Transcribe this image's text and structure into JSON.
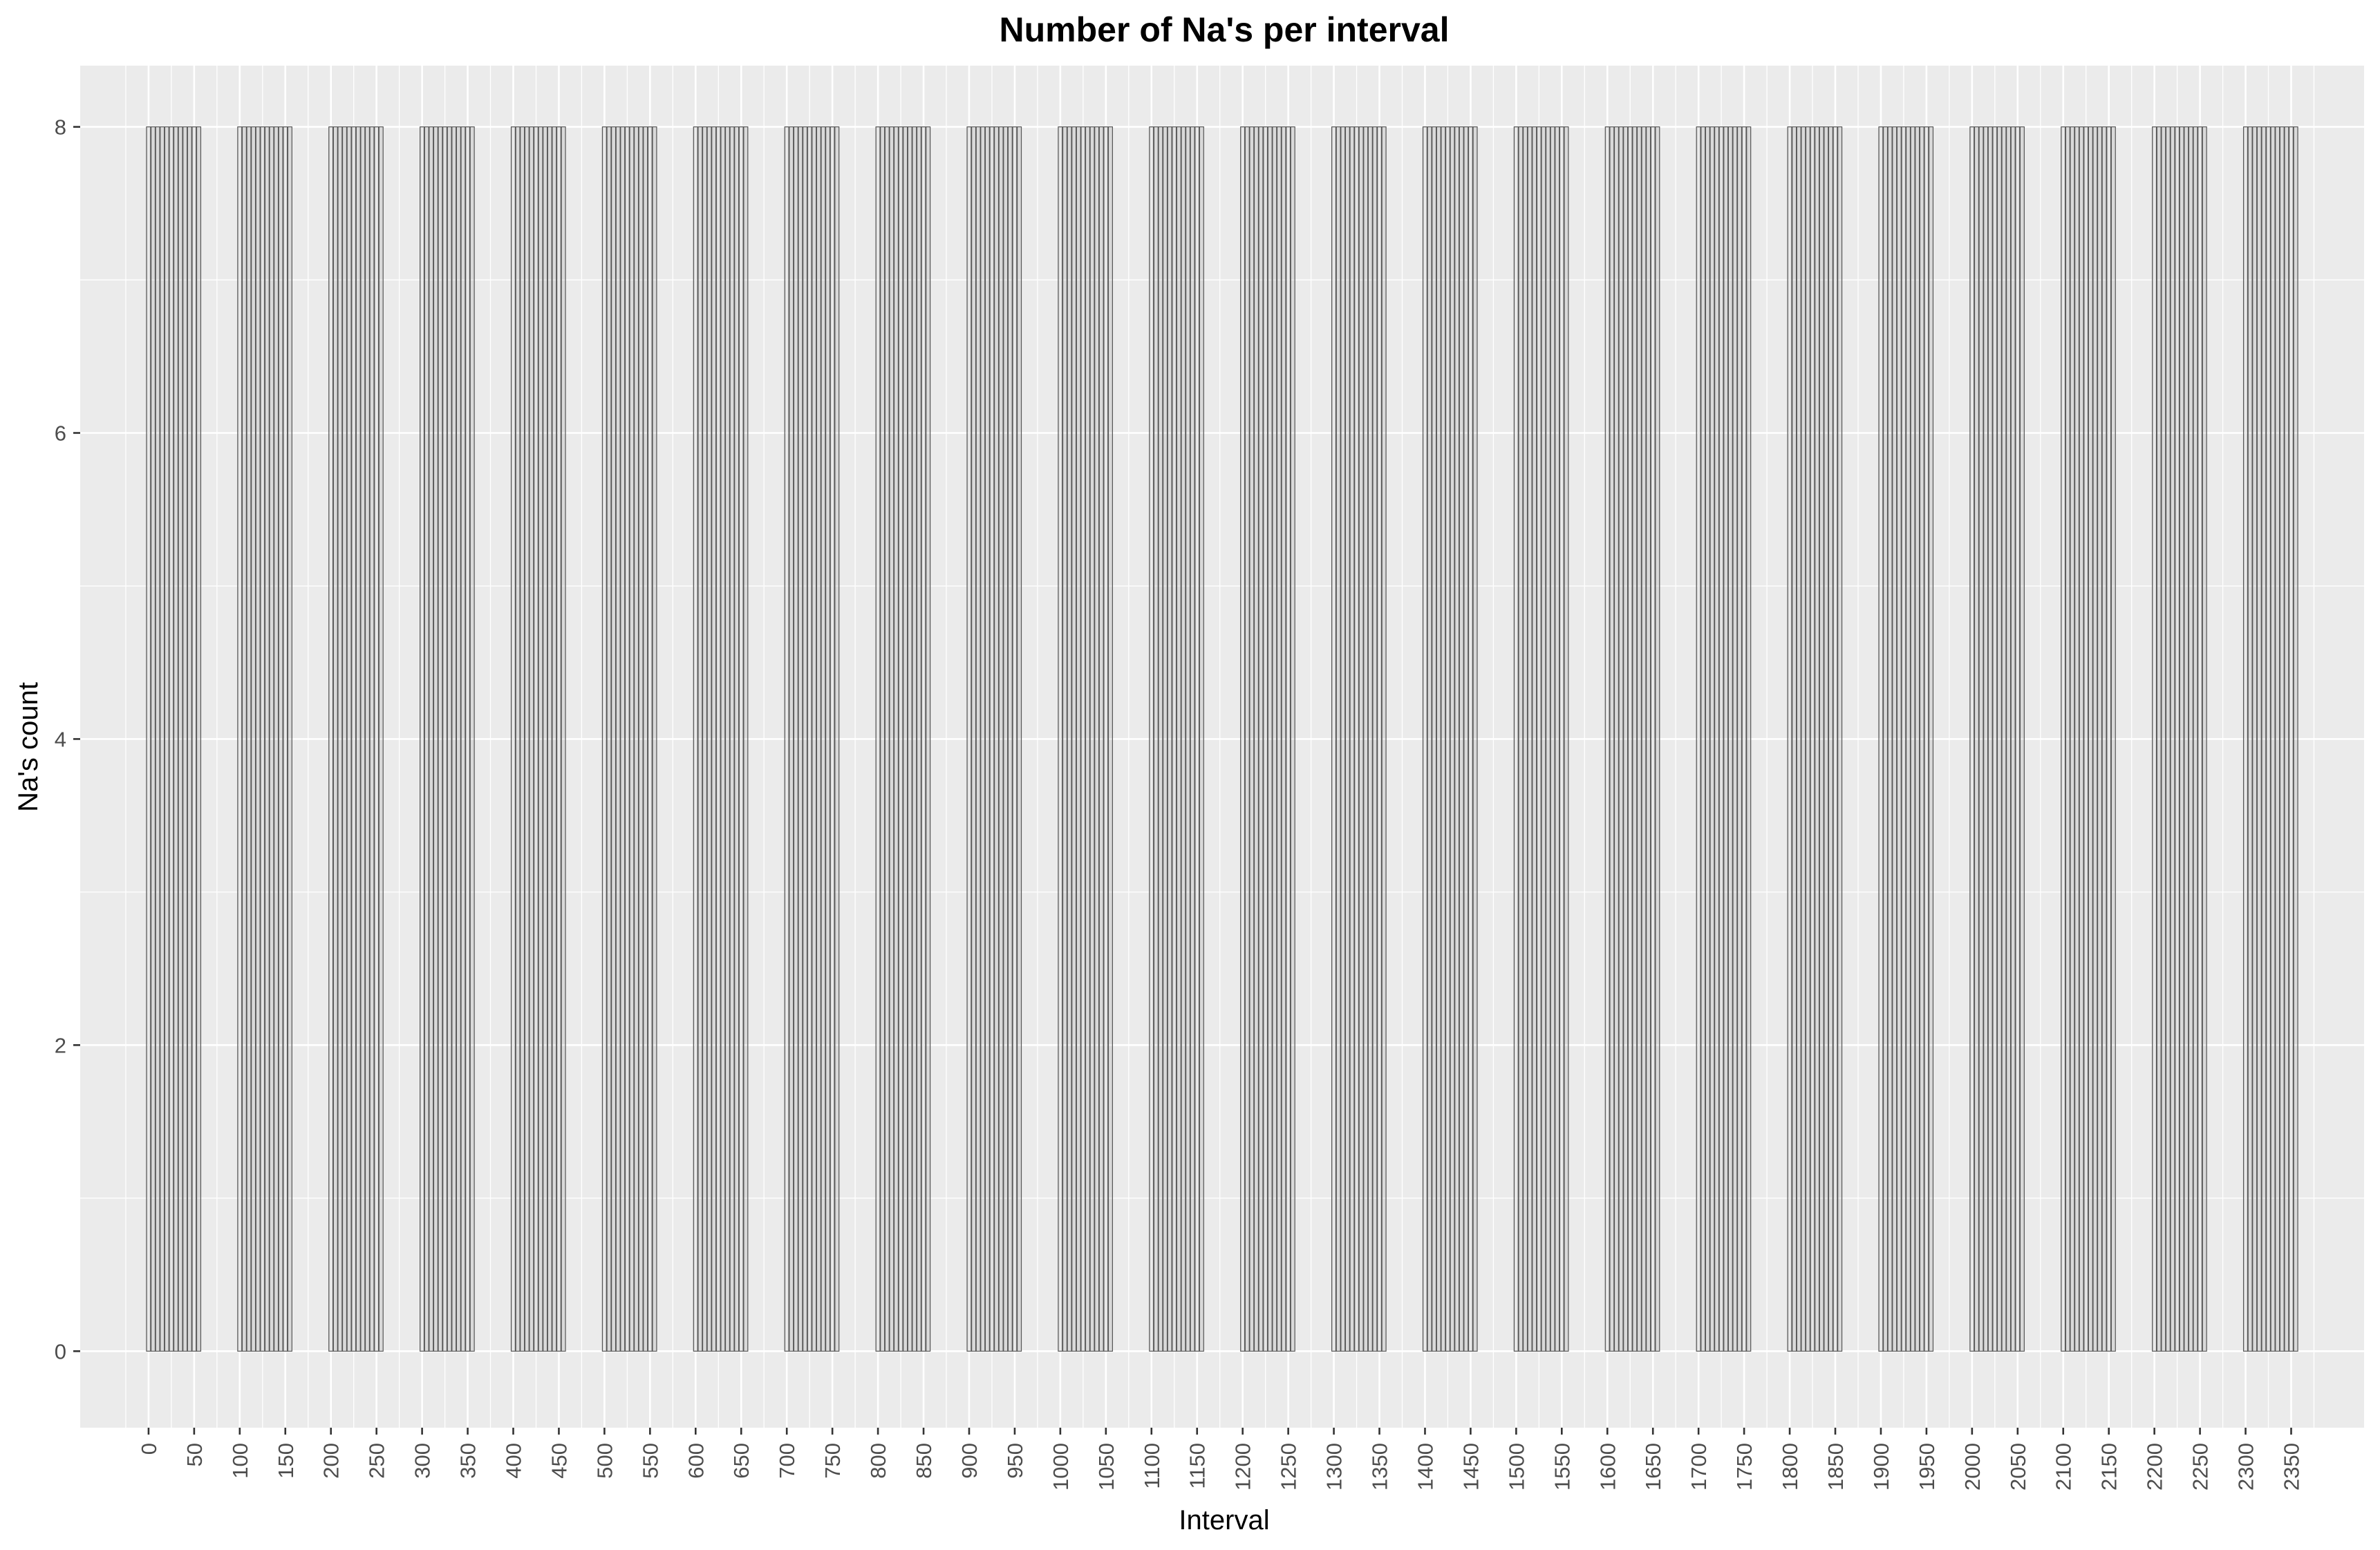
{
  "chart_data": {
    "type": "bar",
    "title": "Number of Na's per interval",
    "xlabel": "Interval",
    "ylabel": "Na's count",
    "ylim": [
      -0.5,
      8.4
    ],
    "xlim": [
      -75,
      2430
    ],
    "yticks": [
      0,
      2,
      4,
      6,
      8
    ],
    "xticks": [
      0,
      50,
      100,
      150,
      200,
      250,
      300,
      350,
      400,
      450,
      500,
      550,
      600,
      650,
      700,
      750,
      800,
      850,
      900,
      950,
      1000,
      1050,
      1100,
      1150,
      1200,
      1250,
      1300,
      1350,
      1400,
      1450,
      1500,
      1550,
      1600,
      1650,
      1700,
      1750,
      1800,
      1850,
      1900,
      1950,
      2000,
      2050,
      2100,
      2150,
      2200,
      2250,
      2300,
      2350
    ],
    "grid": true,
    "bar_pattern": {
      "description": "intervals 0,5,...,55 plus each multiple of 100 offset",
      "group_starts": [
        0,
        100,
        200,
        300,
        400,
        500,
        600,
        700,
        800,
        900,
        1000,
        1100,
        1200,
        1300,
        1400,
        1500,
        1600,
        1700,
        1800,
        1900,
        2000,
        2100,
        2200,
        2300
      ],
      "offsets": [
        0,
        5,
        10,
        15,
        20,
        25,
        30,
        35,
        40,
        45,
        50,
        55
      ],
      "value": 8
    },
    "colors": {
      "panel": "#ebebeb",
      "grid": "#ffffff",
      "bar_outline": "#555555",
      "bar_fill": "#595959"
    }
  }
}
